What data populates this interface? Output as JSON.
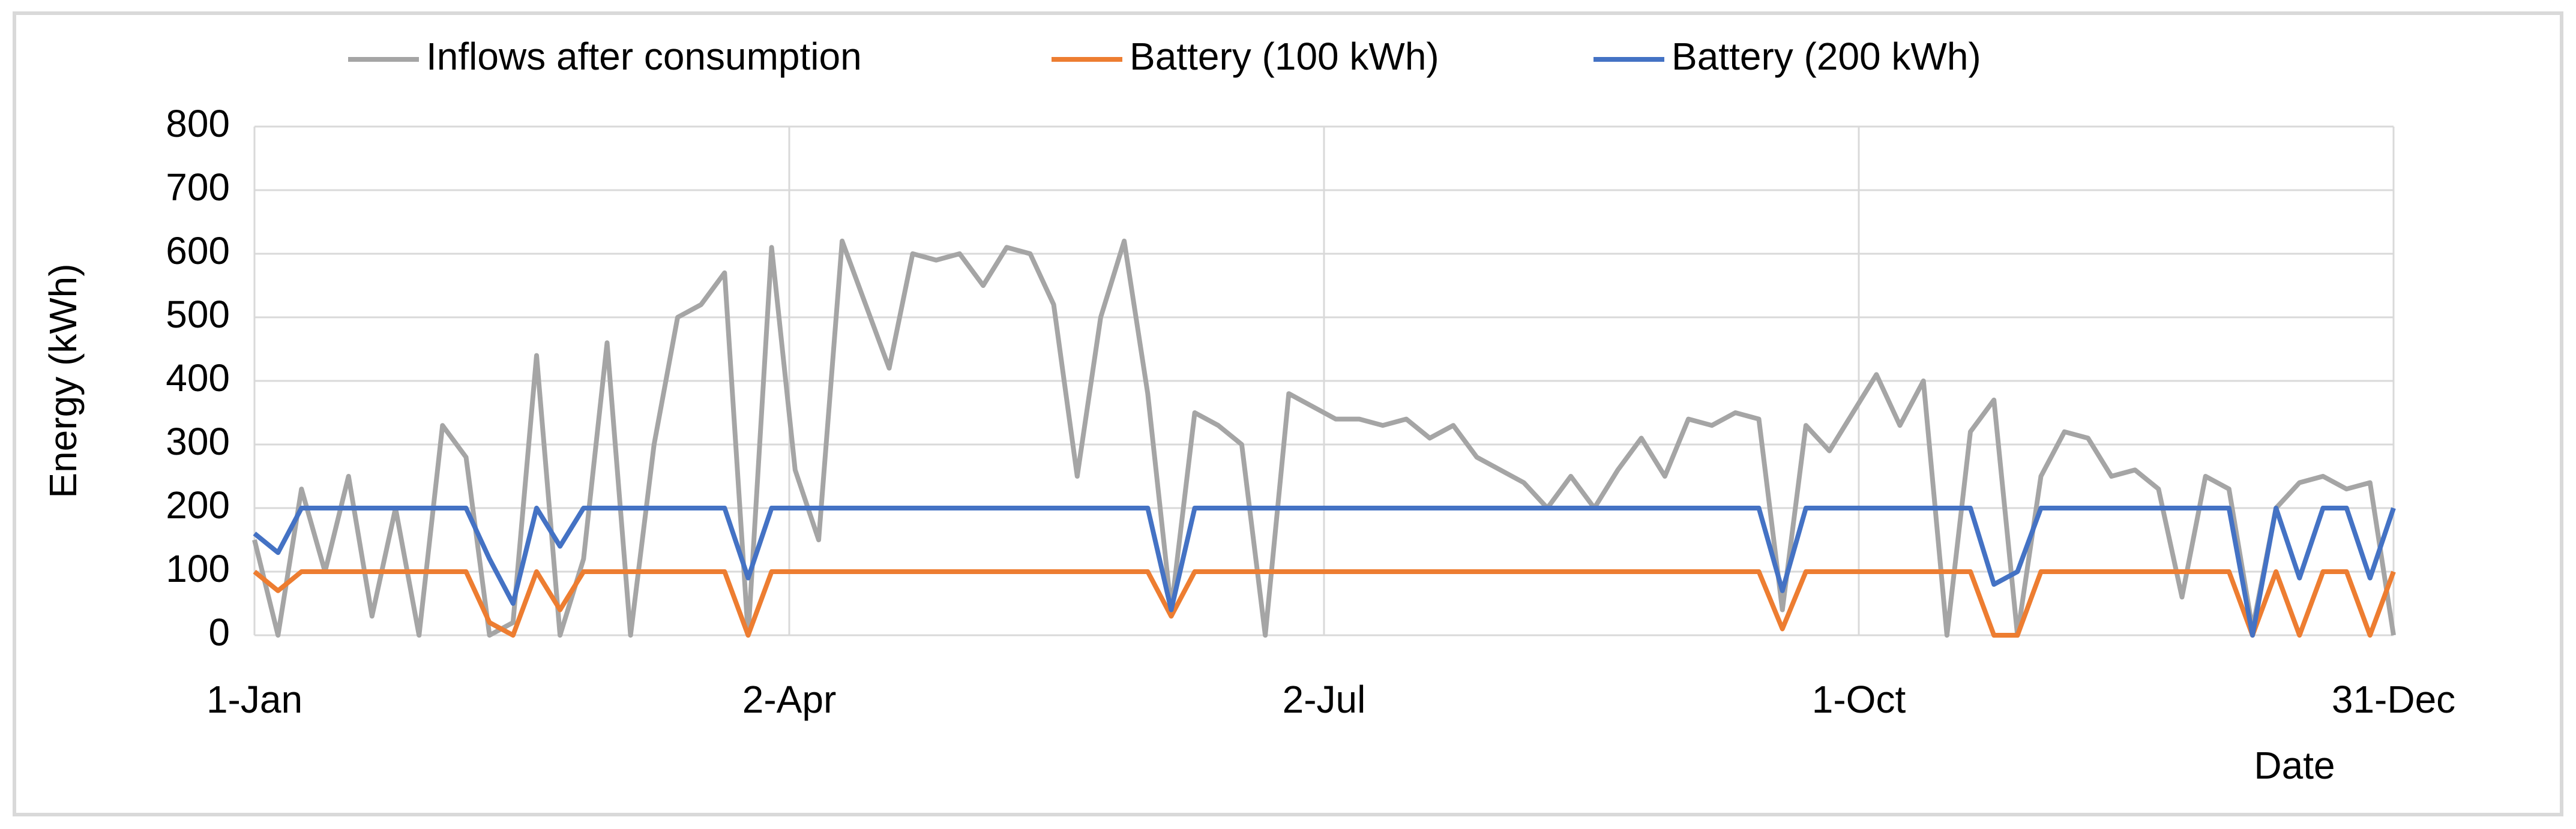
{
  "chart_data": {
    "type": "line",
    "y_label": "Energy (kWh)",
    "x_label": "Date",
    "x": [
      1,
      5,
      9,
      13,
      17,
      21,
      25,
      29,
      33,
      37,
      41,
      45,
      49,
      53,
      57,
      61,
      65,
      69,
      73,
      77,
      81,
      85,
      89,
      93,
      97,
      101,
      105,
      109,
      113,
      117,
      121,
      125,
      129,
      133,
      137,
      141,
      145,
      149,
      153,
      157,
      161,
      165,
      169,
      173,
      177,
      181,
      185,
      189,
      193,
      197,
      201,
      205,
      209,
      213,
      217,
      221,
      225,
      229,
      233,
      237,
      241,
      245,
      249,
      253,
      257,
      261,
      265,
      269,
      273,
      277,
      281,
      285,
      289,
      293,
      297,
      301,
      305,
      309,
      313,
      317,
      321,
      325,
      329,
      333,
      337,
      341,
      345,
      349,
      353,
      357,
      361,
      365
    ],
    "series": [
      {
        "name": "Inflows after consumption",
        "color": "#a5a5a5",
        "values": [
          150,
          0,
          230,
          100,
          250,
          30,
          200,
          0,
          330,
          280,
          0,
          20,
          440,
          0,
          120,
          460,
          0,
          300,
          500,
          520,
          570,
          0,
          610,
          260,
          150,
          620,
          520,
          420,
          600,
          590,
          600,
          550,
          610,
          600,
          520,
          250,
          500,
          620,
          380,
          40,
          350,
          330,
          300,
          0,
          380,
          360,
          340,
          340,
          330,
          340,
          310,
          330,
          280,
          260,
          240,
          200,
          250,
          200,
          260,
          310,
          250,
          340,
          330,
          350,
          340,
          40,
          330,
          290,
          350,
          410,
          330,
          400,
          0,
          320,
          370,
          0,
          250,
          320,
          310,
          250,
          260,
          230,
          60,
          250,
          230,
          10,
          200,
          240,
          250,
          230,
          240,
          0
        ]
      },
      {
        "name": "Battery (100 kWh)",
        "color": "#ed7d31",
        "values": [
          100,
          70,
          100,
          100,
          100,
          100,
          100,
          100,
          100,
          100,
          20,
          0,
          100,
          40,
          100,
          100,
          100,
          100,
          100,
          100,
          100,
          0,
          100,
          100,
          100,
          100,
          100,
          100,
          100,
          100,
          100,
          100,
          100,
          100,
          100,
          100,
          100,
          100,
          100,
          30,
          100,
          100,
          100,
          100,
          100,
          100,
          100,
          100,
          100,
          100,
          100,
          100,
          100,
          100,
          100,
          100,
          100,
          100,
          100,
          100,
          100,
          100,
          100,
          100,
          100,
          10,
          100,
          100,
          100,
          100,
          100,
          100,
          100,
          100,
          0,
          0,
          100,
          100,
          100,
          100,
          100,
          100,
          100,
          100,
          100,
          0,
          100,
          0,
          100,
          100,
          0,
          100
        ]
      },
      {
        "name": "Battery (200 kWh)",
        "color": "#4472c4",
        "values": [
          160,
          130,
          200,
          200,
          200,
          200,
          200,
          200,
          200,
          200,
          120,
          50,
          200,
          140,
          200,
          200,
          200,
          200,
          200,
          200,
          200,
          90,
          200,
          200,
          200,
          200,
          200,
          200,
          200,
          200,
          200,
          200,
          200,
          200,
          200,
          200,
          200,
          200,
          200,
          40,
          200,
          200,
          200,
          200,
          200,
          200,
          200,
          200,
          200,
          200,
          200,
          200,
          200,
          200,
          200,
          200,
          200,
          200,
          200,
          200,
          200,
          200,
          200,
          200,
          200,
          70,
          200,
          200,
          200,
          200,
          200,
          200,
          200,
          200,
          80,
          100,
          200,
          200,
          200,
          200,
          200,
          200,
          200,
          200,
          200,
          0,
          200,
          90,
          200,
          200,
          90,
          200
        ]
      }
    ],
    "xlim": [
      1,
      365
    ],
    "xticks": [
      {
        "value": 1,
        "label": "1-Jan"
      },
      {
        "value": 92,
        "label": "2-Apr"
      },
      {
        "value": 183,
        "label": "2-Jul"
      },
      {
        "value": 274,
        "label": "1-Oct"
      },
      {
        "value": 365,
        "label": "31-Dec"
      }
    ],
    "ylim": [
      0,
      800
    ],
    "yticks": [
      0,
      100,
      200,
      300,
      400,
      500,
      600,
      700,
      800
    ],
    "grid": true,
    "legend": "top"
  }
}
